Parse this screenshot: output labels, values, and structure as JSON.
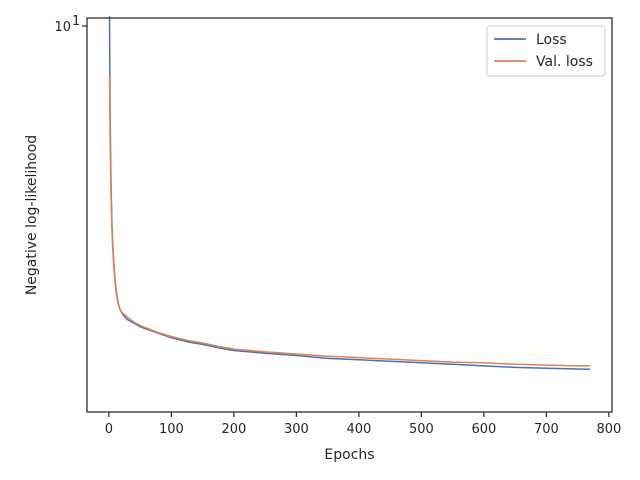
{
  "chart_data": {
    "type": "line",
    "title": "",
    "xlabel": "Epochs",
    "ylabel": "Negative log-likelihood",
    "xlim": [
      -35,
      805
    ],
    "xticks": [
      "0",
      "100",
      "200",
      "300",
      "400",
      "500",
      "600",
      "700",
      "800"
    ],
    "yscale": "log",
    "ylim": [
      0.79,
      10.0
    ],
    "yticks": [
      {
        "base": "10",
        "exp": "1",
        "value": 10
      }
    ],
    "grid": false,
    "legend": "top-right",
    "series": [
      {
        "name": "Loss",
        "color": "#4c72b0",
        "x": [
          1,
          2,
          3,
          4,
          5,
          6,
          8,
          10,
          12,
          15,
          18,
          22,
          26,
          30,
          40,
          50,
          60,
          80,
          100,
          125,
          150,
          175,
          200,
          250,
          300,
          350,
          400,
          450,
          500,
          550,
          600,
          650,
          700,
          750,
          770
        ],
        "y": [
          9.6,
          5.2,
          3.6,
          2.9,
          2.5,
          2.25,
          1.95,
          1.75,
          1.62,
          1.51,
          1.45,
          1.41,
          1.38,
          1.36,
          1.33,
          1.3,
          1.28,
          1.245,
          1.21,
          1.18,
          1.16,
          1.135,
          1.115,
          1.095,
          1.08,
          1.06,
          1.05,
          1.04,
          1.03,
          1.02,
          1.01,
          1.0,
          0.995,
          0.99,
          0.988
        ]
      },
      {
        "name": "Val. loss",
        "color": "#dd8452",
        "x": [
          1,
          2,
          3,
          4,
          5,
          6,
          8,
          10,
          12,
          15,
          18,
          22,
          26,
          30,
          40,
          50,
          60,
          80,
          100,
          125,
          150,
          175,
          200,
          250,
          300,
          350,
          400,
          450,
          500,
          550,
          600,
          650,
          700,
          750,
          770
        ],
        "y": [
          6.5,
          4.4,
          3.3,
          2.75,
          2.4,
          2.18,
          1.9,
          1.72,
          1.6,
          1.5,
          1.45,
          1.42,
          1.4,
          1.38,
          1.34,
          1.31,
          1.29,
          1.25,
          1.22,
          1.19,
          1.17,
          1.145,
          1.125,
          1.105,
          1.09,
          1.075,
          1.065,
          1.055,
          1.045,
          1.035,
          1.03,
          1.02,
          1.015,
          1.01,
          1.01
        ]
      }
    ]
  }
}
